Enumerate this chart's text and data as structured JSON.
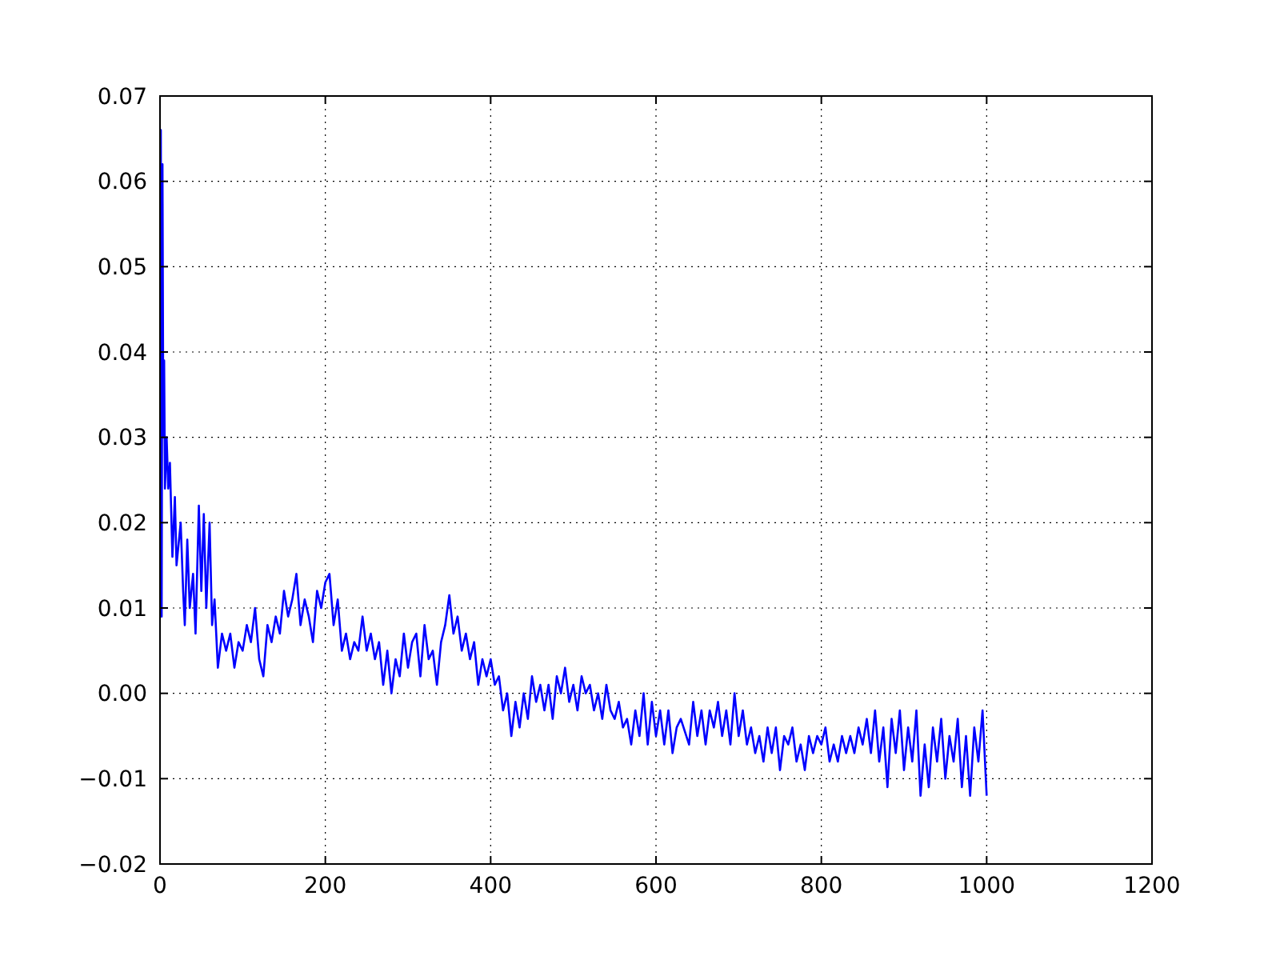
{
  "chart_data": {
    "type": "line",
    "grid": true,
    "line_style": "solid",
    "xlim": [
      0,
      1200
    ],
    "xticks": [
      0,
      200,
      400,
      600,
      800,
      1000,
      1200
    ],
    "ylim": [
      -0.02,
      0.07
    ],
    "yticks": [
      {
        "value": -0.02,
        "label": "−0.02"
      },
      {
        "value": -0.01,
        "label": "−0.01"
      },
      {
        "value": 0,
        "label": "0.00"
      },
      {
        "value": 0.01,
        "label": "0.01"
      },
      {
        "value": 0.02,
        "label": "0.02"
      },
      {
        "value": 0.03,
        "label": "0.03"
      },
      {
        "value": 0.04,
        "label": "0.04"
      },
      {
        "value": 0.05,
        "label": "0.05"
      },
      {
        "value": 0.06,
        "label": "0.06"
      },
      {
        "value": 0.07,
        "label": "0.07"
      }
    ],
    "series": [
      {
        "color": "#0000ff",
        "x": [
          0,
          1,
          2,
          3,
          4,
          5,
          6,
          8,
          10,
          12,
          15,
          18,
          20,
          25,
          28,
          30,
          33,
          36,
          40,
          43,
          47,
          50,
          53,
          56,
          60,
          63,
          66,
          70,
          75,
          80,
          85,
          90,
          95,
          100,
          105,
          110,
          115,
          120,
          125,
          130,
          135,
          140,
          145,
          150,
          155,
          160,
          165,
          170,
          175,
          180,
          185,
          190,
          195,
          200,
          205,
          210,
          215,
          220,
          225,
          230,
          235,
          240,
          245,
          250,
          255,
          260,
          265,
          270,
          275,
          280,
          285,
          290,
          295,
          300,
          305,
          310,
          315,
          320,
          325,
          330,
          335,
          340,
          345,
          350,
          355,
          360,
          365,
          370,
          375,
          380,
          385,
          390,
          395,
          400,
          405,
          410,
          415,
          420,
          425,
          430,
          435,
          440,
          445,
          450,
          455,
          460,
          465,
          470,
          475,
          480,
          485,
          490,
          495,
          500,
          505,
          510,
          515,
          520,
          525,
          530,
          535,
          540,
          545,
          550,
          555,
          560,
          565,
          570,
          575,
          580,
          585,
          590,
          595,
          600,
          605,
          610,
          615,
          620,
          625,
          630,
          640,
          645,
          650,
          655,
          660,
          665,
          670,
          675,
          680,
          685,
          690,
          695,
          700,
          705,
          710,
          715,
          720,
          725,
          730,
          735,
          740,
          745,
          750,
          755,
          760,
          765,
          770,
          775,
          780,
          785,
          790,
          795,
          800,
          805,
          810,
          815,
          820,
          825,
          830,
          835,
          840,
          845,
          850,
          855,
          860,
          865,
          870,
          875,
          880,
          885,
          890,
          895,
          900,
          905,
          910,
          915,
          920,
          925,
          930,
          935,
          940,
          945,
          950,
          955,
          960,
          965,
          970,
          975,
          980,
          985,
          990,
          995,
          1000
        ],
        "values": [
          0.025,
          0.066,
          0.009,
          0.062,
          0.03,
          0.039,
          0.024,
          0.03,
          0.024,
          0.027,
          0.016,
          0.023,
          0.015,
          0.02,
          0.012,
          0.008,
          0.018,
          0.01,
          0.014,
          0.007,
          0.022,
          0.012,
          0.021,
          0.01,
          0.02,
          0.008,
          0.011,
          0.003,
          0.007,
          0.005,
          0.007,
          0.003,
          0.006,
          0.005,
          0.008,
          0.006,
          0.01,
          0.004,
          0.002,
          0.008,
          0.006,
          0.009,
          0.007,
          0.012,
          0.009,
          0.011,
          0.014,
          0.008,
          0.011,
          0.009,
          0.006,
          0.012,
          0.01,
          0.013,
          0.014,
          0.008,
          0.011,
          0.005,
          0.007,
          0.004,
          0.006,
          0.005,
          0.009,
          0.005,
          0.007,
          0.004,
          0.006,
          0.001,
          0.005,
          0.0,
          0.004,
          0.002,
          0.007,
          0.003,
          0.006,
          0.007,
          0.002,
          0.008,
          0.004,
          0.005,
          0.001,
          0.006,
          0.008,
          0.0115,
          0.007,
          0.009,
          0.005,
          0.007,
          0.004,
          0.006,
          0.001,
          0.004,
          0.002,
          0.004,
          0.001,
          0.002,
          -0.002,
          0.0,
          -0.005,
          -0.001,
          -0.004,
          0.0,
          -0.003,
          0.002,
          -0.001,
          0.001,
          -0.002,
          0.001,
          -0.003,
          0.002,
          0.0,
          0.003,
          -0.001,
          0.001,
          -0.002,
          0.002,
          0.0,
          0.001,
          -0.002,
          0.0,
          -0.003,
          0.001,
          -0.002,
          -0.003,
          -0.001,
          -0.004,
          -0.003,
          -0.006,
          -0.002,
          -0.005,
          0.0,
          -0.006,
          -0.001,
          -0.005,
          -0.002,
          -0.006,
          -0.002,
          -0.007,
          -0.004,
          -0.003,
          -0.006,
          -0.001,
          -0.005,
          -0.002,
          -0.006,
          -0.002,
          -0.004,
          -0.001,
          -0.005,
          -0.002,
          -0.006,
          0.0,
          -0.005,
          -0.002,
          -0.006,
          -0.004,
          -0.007,
          -0.005,
          -0.008,
          -0.004,
          -0.007,
          -0.004,
          -0.009,
          -0.005,
          -0.006,
          -0.004,
          -0.008,
          -0.006,
          -0.009,
          -0.005,
          -0.007,
          -0.005,
          -0.006,
          -0.004,
          -0.008,
          -0.006,
          -0.008,
          -0.005,
          -0.007,
          -0.005,
          -0.007,
          -0.004,
          -0.006,
          -0.003,
          -0.007,
          -0.002,
          -0.008,
          -0.004,
          -0.011,
          -0.003,
          -0.007,
          -0.002,
          -0.009,
          -0.004,
          -0.008,
          -0.002,
          -0.012,
          -0.006,
          -0.011,
          -0.004,
          -0.008,
          -0.003,
          -0.01,
          -0.005,
          -0.008,
          -0.003,
          -0.011,
          -0.005,
          -0.012,
          -0.004,
          -0.008,
          -0.002,
          -0.012
        ]
      }
    ]
  }
}
